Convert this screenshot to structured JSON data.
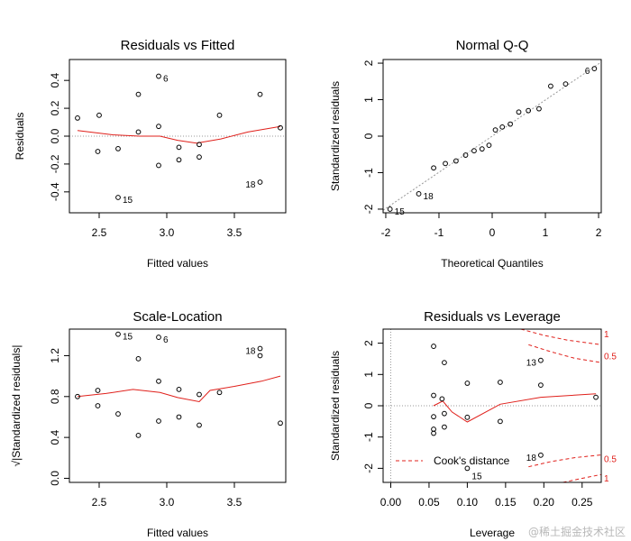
{
  "watermark": "@稀土掘金技术社区",
  "colors": {
    "smooth": "#e0201b",
    "reference": "#9a9a9a",
    "points": "#000000"
  },
  "chart_data": [
    {
      "type": "scatter",
      "title": "Residuals vs Fitted",
      "xlabel": "Fitted values",
      "ylabel": "Residuals",
      "xlim": [
        2.28,
        3.88
      ],
      "ylim": [
        -0.55,
        0.55
      ],
      "xticks": [
        "2.5",
        "3.0",
        "3.5"
      ],
      "yticks": [
        "-0.4",
        "-0.2",
        "0.0",
        "0.2",
        "0.4"
      ],
      "points": [
        {
          "x": 2.34,
          "y": 0.13
        },
        {
          "x": 2.49,
          "y": -0.11
        },
        {
          "x": 2.5,
          "y": 0.15
        },
        {
          "x": 2.64,
          "y": -0.09
        },
        {
          "x": 2.64,
          "y": -0.44
        },
        {
          "x": 2.79,
          "y": 0.3
        },
        {
          "x": 2.79,
          "y": 0.03
        },
        {
          "x": 2.94,
          "y": 0.43
        },
        {
          "x": 2.94,
          "y": 0.07
        },
        {
          "x": 2.94,
          "y": -0.21
        },
        {
          "x": 3.09,
          "y": -0.08
        },
        {
          "x": 3.09,
          "y": -0.17
        },
        {
          "x": 3.24,
          "y": -0.06
        },
        {
          "x": 3.24,
          "y": -0.15
        },
        {
          "x": 3.39,
          "y": 0.15
        },
        {
          "x": 3.69,
          "y": 0.3
        },
        {
          "x": 3.69,
          "y": -0.33
        },
        {
          "x": 3.84,
          "y": 0.06
        }
      ],
      "smooth": [
        [
          2.34,
          0.04
        ],
        [
          2.6,
          0.01
        ],
        [
          2.8,
          0.0
        ],
        [
          2.95,
          0.0
        ],
        [
          3.08,
          -0.03
        ],
        [
          3.22,
          -0.05
        ],
        [
          3.4,
          -0.02
        ],
        [
          3.6,
          0.03
        ],
        [
          3.84,
          0.07
        ]
      ],
      "reference_line": 0,
      "annotations": [
        {
          "label": "6",
          "x": 2.94,
          "y": 0.43,
          "side": "right"
        },
        {
          "label": "15",
          "x": 2.64,
          "y": -0.44,
          "side": "right"
        },
        {
          "label": "18",
          "x": 3.69,
          "y": -0.33,
          "side": "left"
        }
      ]
    },
    {
      "type": "scatter",
      "title": "Normal Q-Q",
      "xlabel": "Theoretical Quantiles",
      "ylabel": "Standardized residuals",
      "xlim": [
        -2.05,
        2.05
      ],
      "ylim": [
        -2.1,
        2.1
      ],
      "xticks": [
        "-2",
        "-1",
        "0",
        "1",
        "2"
      ],
      "yticks": [
        "-2",
        "-1",
        "0",
        "1",
        "2"
      ],
      "points": [
        {
          "x": -1.92,
          "y": -2.0
        },
        {
          "x": -1.38,
          "y": -1.58
        },
        {
          "x": -1.1,
          "y": -0.87
        },
        {
          "x": -0.88,
          "y": -0.75
        },
        {
          "x": -0.68,
          "y": -0.68
        },
        {
          "x": -0.5,
          "y": -0.52
        },
        {
          "x": -0.34,
          "y": -0.4
        },
        {
          "x": -0.19,
          "y": -0.35
        },
        {
          "x": -0.06,
          "y": -0.25
        },
        {
          "x": 0.06,
          "y": 0.17
        },
        {
          "x": 0.19,
          "y": 0.25
        },
        {
          "x": 0.34,
          "y": 0.33
        },
        {
          "x": 0.5,
          "y": 0.66
        },
        {
          "x": 0.68,
          "y": 0.7
        },
        {
          "x": 0.88,
          "y": 0.75
        },
        {
          "x": 1.1,
          "y": 1.37
        },
        {
          "x": 1.38,
          "y": 1.43
        },
        {
          "x": 1.92,
          "y": 1.85
        }
      ],
      "qq_line": [
        [
          -2.05,
          -2.03
        ],
        [
          2.05,
          2.03
        ]
      ],
      "annotations": [
        {
          "label": "6",
          "x": 1.92,
          "y": 1.85,
          "side": "left"
        },
        {
          "label": "18",
          "x": -1.38,
          "y": -1.58,
          "side": "right"
        },
        {
          "label": "15",
          "x": -1.92,
          "y": -2.0,
          "side": "right"
        }
      ]
    },
    {
      "type": "scatter",
      "title": "Scale-Location",
      "xlabel": "Fitted values",
      "ylabel": "√|Standardized residuals|",
      "xlim": [
        2.28,
        3.88
      ],
      "ylim": [
        -0.04,
        1.46
      ],
      "xticks": [
        "2.5",
        "3.0",
        "3.5"
      ],
      "yticks": [
        "0.0",
        "0.4",
        "0.8",
        "1.2"
      ],
      "points": [
        {
          "x": 2.34,
          "y": 0.8
        },
        {
          "x": 2.49,
          "y": 0.86
        },
        {
          "x": 2.49,
          "y": 0.71
        },
        {
          "x": 2.64,
          "y": 1.41
        },
        {
          "x": 2.64,
          "y": 0.63
        },
        {
          "x": 2.79,
          "y": 1.17
        },
        {
          "x": 2.79,
          "y": 0.42
        },
        {
          "x": 2.94,
          "y": 1.38
        },
        {
          "x": 2.94,
          "y": 0.95
        },
        {
          "x": 2.94,
          "y": 0.56
        },
        {
          "x": 3.09,
          "y": 0.87
        },
        {
          "x": 3.09,
          "y": 0.6
        },
        {
          "x": 3.24,
          "y": 0.82
        },
        {
          "x": 3.24,
          "y": 0.52
        },
        {
          "x": 3.39,
          "y": 0.84
        },
        {
          "x": 3.69,
          "y": 1.27
        },
        {
          "x": 3.69,
          "y": 1.2
        },
        {
          "x": 3.84,
          "y": 0.54
        }
      ],
      "smooth": [
        [
          2.34,
          0.8
        ],
        [
          2.55,
          0.83
        ],
        [
          2.75,
          0.87
        ],
        [
          2.95,
          0.84
        ],
        [
          3.08,
          0.79
        ],
        [
          3.24,
          0.75
        ],
        [
          3.32,
          0.86
        ],
        [
          3.5,
          0.9
        ],
        [
          3.7,
          0.95
        ],
        [
          3.84,
          1.0
        ]
      ],
      "annotations": [
        {
          "label": "15",
          "x": 2.64,
          "y": 1.41,
          "side": "right"
        },
        {
          "label": "6",
          "x": 2.94,
          "y": 1.38,
          "side": "right"
        },
        {
          "label": "18",
          "x": 3.69,
          "y": 1.27,
          "side": "left"
        }
      ]
    },
    {
      "type": "scatter",
      "title": "Residuals vs Leverage",
      "xlabel": "Leverage",
      "ylabel": "Standardized residuals",
      "xlim": [
        -0.01,
        0.275
      ],
      "ylim": [
        -2.45,
        2.45
      ],
      "xticks": [
        "0.00",
        "0.05",
        "0.10",
        "0.15",
        "0.20",
        "0.25"
      ],
      "yticks": [
        "-2",
        "-1",
        "0",
        "1",
        "2"
      ],
      "points": [
        {
          "x": 0.056,
          "y": 1.9
        },
        {
          "x": 0.056,
          "y": 0.33
        },
        {
          "x": 0.056,
          "y": -0.35
        },
        {
          "x": 0.056,
          "y": -0.75
        },
        {
          "x": 0.056,
          "y": -0.88
        },
        {
          "x": 0.067,
          "y": 0.22
        },
        {
          "x": 0.07,
          "y": 1.38
        },
        {
          "x": 0.07,
          "y": -0.25
        },
        {
          "x": 0.07,
          "y": -0.68
        },
        {
          "x": 0.1,
          "y": 0.72
        },
        {
          "x": 0.1,
          "y": -0.37
        },
        {
          "x": 0.1,
          "y": -2.0
        },
        {
          "x": 0.143,
          "y": 0.75
        },
        {
          "x": 0.143,
          "y": -0.5
        },
        {
          "x": 0.196,
          "y": 1.45
        },
        {
          "x": 0.196,
          "y": 0.66
        },
        {
          "x": 0.196,
          "y": -1.58
        },
        {
          "x": 0.268,
          "y": 0.27
        }
      ],
      "smooth": [
        [
          0.056,
          0.0
        ],
        [
          0.068,
          0.15
        ],
        [
          0.08,
          -0.2
        ],
        [
          0.1,
          -0.52
        ],
        [
          0.143,
          0.05
        ],
        [
          0.196,
          0.27
        ],
        [
          0.268,
          0.38
        ]
      ],
      "annotations": [
        {
          "label": "13",
          "x": 0.196,
          "y": 1.45,
          "side": "left"
        },
        {
          "label": "18",
          "x": 0.196,
          "y": -1.58,
          "side": "left"
        },
        {
          "label": "15",
          "x": 0.1,
          "y": -2.0,
          "side": "right-below"
        }
      ],
      "cooks_contours": [
        {
          "label": "1",
          "level": 1,
          "points": [
            [
              0.17,
              2.45
            ],
            [
              0.2,
              2.25
            ],
            [
              0.23,
              2.1
            ],
            [
              0.26,
              2.0
            ],
            [
              0.275,
              1.95
            ]
          ],
          "label_y": 2.3
        },
        {
          "label": "0.5",
          "level": 0.5,
          "points": [
            [
              0.18,
              1.95
            ],
            [
              0.21,
              1.72
            ],
            [
              0.24,
              1.52
            ],
            [
              0.275,
              1.38
            ]
          ],
          "label_y": 1.6
        },
        {
          "label": "0.5",
          "level": 0.5,
          "points": [
            [
              0.18,
              -1.95
            ],
            [
              0.21,
              -1.78
            ],
            [
              0.24,
              -1.66
            ],
            [
              0.275,
              -1.57
            ]
          ],
          "label_y": -1.68
        },
        {
          "label": "1",
          "level": 1,
          "points": [
            [
              0.225,
              -2.45
            ],
            [
              0.25,
              -2.32
            ],
            [
              0.275,
              -2.2
            ]
          ],
          "label_y": -2.3
        }
      ],
      "legend": {
        "label": "Cook's distance",
        "position": "bottom-left"
      }
    }
  ]
}
